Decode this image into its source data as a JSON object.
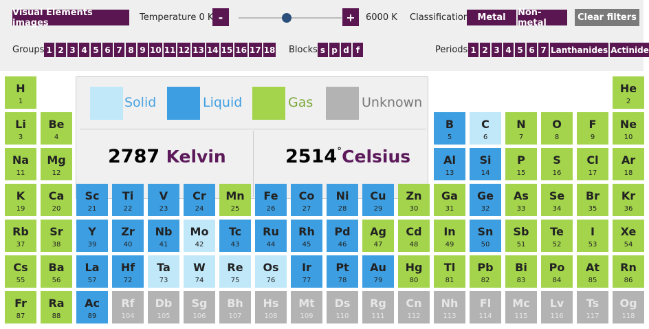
{
  "toolbar": {
    "images_button": "Visual Elements images",
    "temperature_label": "Temperature",
    "slider": {
      "min": {
        "value": 0,
        "label": "0 K"
      },
      "max": {
        "value": 6000,
        "label": "6000 K"
      }
    },
    "minus": "-",
    "plus": "+",
    "classification_label": "Classification",
    "classification": [
      "Metal",
      "Non-metal"
    ],
    "clear": "Clear filters",
    "groups_label": "Groups",
    "groups": [
      "1",
      "2",
      "3",
      "4",
      "5",
      "6",
      "7",
      "8",
      "9",
      "10",
      "11",
      "12",
      "13",
      "14",
      "15",
      "16",
      "17",
      "18"
    ],
    "blocks_label": "Blocks",
    "blocks": [
      "s",
      "p",
      "d",
      "f"
    ],
    "periods_label": "Periods",
    "periods": [
      "1",
      "2",
      "3",
      "4",
      "5",
      "6",
      "7",
      "Lanthanides",
      "Actinides"
    ]
  },
  "legend": [
    {
      "name": "Solid",
      "color": "#c0e8f9",
      "text_color": "#4aa3df"
    },
    {
      "name": "Liquid",
      "color": "#3d9fe2",
      "text_color": "#3d9fe2"
    },
    {
      "name": "Gas",
      "color": "#a3d44c",
      "text_color": "#7aa93a"
    },
    {
      "name": "Unknown",
      "color": "#b3b3b3",
      "text_color": "#777777"
    }
  ],
  "temperature": {
    "kelvin": 2787,
    "kelvin_unit": "Kelvin",
    "celsius": 2514,
    "degree": "°",
    "celsius_unit": "Celsius"
  },
  "elements": [
    {
      "symbol": "H",
      "number": 1,
      "state": 2
    },
    {
      "symbol": "He",
      "number": 2,
      "state": 2
    },
    {
      "symbol": "Li",
      "number": 3,
      "state": 2
    },
    {
      "symbol": "Be",
      "number": 4,
      "state": 2
    },
    {
      "symbol": "B",
      "number": 5,
      "state": 1
    },
    {
      "symbol": "C",
      "number": 6,
      "state": 0
    },
    {
      "symbol": "N",
      "number": 7,
      "state": 2
    },
    {
      "symbol": "O",
      "number": 8,
      "state": 2
    },
    {
      "symbol": "F",
      "number": 9,
      "state": 2
    },
    {
      "symbol": "Ne",
      "number": 10,
      "state": 2
    },
    {
      "symbol": "Na",
      "number": 11,
      "state": 2
    },
    {
      "symbol": "Mg",
      "number": 12,
      "state": 2
    },
    {
      "symbol": "Al",
      "number": 13,
      "state": 1
    },
    {
      "symbol": "Si",
      "number": 14,
      "state": 1
    },
    {
      "symbol": "P",
      "number": 15,
      "state": 2
    },
    {
      "symbol": "S",
      "number": 16,
      "state": 2
    },
    {
      "symbol": "Cl",
      "number": 17,
      "state": 2
    },
    {
      "symbol": "Ar",
      "number": 18,
      "state": 2
    },
    {
      "symbol": "K",
      "number": 19,
      "state": 2
    },
    {
      "symbol": "Ca",
      "number": 20,
      "state": 2
    },
    {
      "symbol": "Sc",
      "number": 21,
      "state": 1
    },
    {
      "symbol": "Ti",
      "number": 22,
      "state": 1
    },
    {
      "symbol": "V",
      "number": 23,
      "state": 1
    },
    {
      "symbol": "Cr",
      "number": 24,
      "state": 1
    },
    {
      "symbol": "Mn",
      "number": 25,
      "state": 2
    },
    {
      "symbol": "Fe",
      "number": 26,
      "state": 1
    },
    {
      "symbol": "Co",
      "number": 27,
      "state": 1
    },
    {
      "symbol": "Ni",
      "number": 28,
      "state": 1
    },
    {
      "symbol": "Cu",
      "number": 29,
      "state": 1
    },
    {
      "symbol": "Zn",
      "number": 30,
      "state": 2
    },
    {
      "symbol": "Ga",
      "number": 31,
      "state": 2
    },
    {
      "symbol": "Ge",
      "number": 32,
      "state": 1
    },
    {
      "symbol": "As",
      "number": 33,
      "state": 2
    },
    {
      "symbol": "Se",
      "number": 34,
      "state": 2
    },
    {
      "symbol": "Br",
      "number": 35,
      "state": 2
    },
    {
      "symbol": "Kr",
      "number": 36,
      "state": 2
    },
    {
      "symbol": "Rb",
      "number": 37,
      "state": 2
    },
    {
      "symbol": "Sr",
      "number": 38,
      "state": 2
    },
    {
      "symbol": "Y",
      "number": 39,
      "state": 1
    },
    {
      "symbol": "Zr",
      "number": 40,
      "state": 1
    },
    {
      "symbol": "Nb",
      "number": 41,
      "state": 1
    },
    {
      "symbol": "Mo",
      "number": 42,
      "state": 0
    },
    {
      "symbol": "Tc",
      "number": 43,
      "state": 1
    },
    {
      "symbol": "Ru",
      "number": 44,
      "state": 1
    },
    {
      "symbol": "Rh",
      "number": 45,
      "state": 1
    },
    {
      "symbol": "Pd",
      "number": 46,
      "state": 1
    },
    {
      "symbol": "Ag",
      "number": 47,
      "state": 2
    },
    {
      "symbol": "Cd",
      "number": 48,
      "state": 2
    },
    {
      "symbol": "In",
      "number": 49,
      "state": 2
    },
    {
      "symbol": "Sn",
      "number": 50,
      "state": 1
    },
    {
      "symbol": "Sb",
      "number": 51,
      "state": 2
    },
    {
      "symbol": "Te",
      "number": 52,
      "state": 2
    },
    {
      "symbol": "I",
      "number": 53,
      "state": 2
    },
    {
      "symbol": "Xe",
      "number": 54,
      "state": 2
    },
    {
      "symbol": "Cs",
      "number": 55,
      "state": 2
    },
    {
      "symbol": "Ba",
      "number": 56,
      "state": 2
    },
    {
      "symbol": "La",
      "number": 57,
      "state": 1
    },
    {
      "symbol": "Hf",
      "number": 72,
      "state": 1
    },
    {
      "symbol": "Ta",
      "number": 73,
      "state": 0
    },
    {
      "symbol": "W",
      "number": 74,
      "state": 0
    },
    {
      "symbol": "Re",
      "number": 75,
      "state": 0
    },
    {
      "symbol": "Os",
      "number": 76,
      "state": 0
    },
    {
      "symbol": "Ir",
      "number": 77,
      "state": 1
    },
    {
      "symbol": "Pt",
      "number": 78,
      "state": 1
    },
    {
      "symbol": "Au",
      "number": 79,
      "state": 1
    },
    {
      "symbol": "Hg",
      "number": 80,
      "state": 2
    },
    {
      "symbol": "Tl",
      "number": 81,
      "state": 2
    },
    {
      "symbol": "Pb",
      "number": 82,
      "state": 2
    },
    {
      "symbol": "Bi",
      "number": 83,
      "state": 2
    },
    {
      "symbol": "Po",
      "number": 84,
      "state": 2
    },
    {
      "symbol": "At",
      "number": 85,
      "state": 2
    },
    {
      "symbol": "Rn",
      "number": 86,
      "state": 2
    },
    {
      "symbol": "Fr",
      "number": 87,
      "state": 2
    },
    {
      "symbol": "Ra",
      "number": 88,
      "state": 2
    },
    {
      "symbol": "Ac",
      "number": 89,
      "state": 1
    },
    {
      "symbol": "Rf",
      "number": 104,
      "state": 3
    },
    {
      "symbol": "Db",
      "number": 105,
      "state": 3
    },
    {
      "symbol": "Sg",
      "number": 106,
      "state": 3
    },
    {
      "symbol": "Bh",
      "number": 107,
      "state": 3
    },
    {
      "symbol": "Hs",
      "number": 108,
      "state": 3
    },
    {
      "symbol": "Mt",
      "number": 109,
      "state": 3
    },
    {
      "symbol": "Ds",
      "number": 110,
      "state": 3
    },
    {
      "symbol": "Rg",
      "number": 111,
      "state": 3
    },
    {
      "symbol": "Cn",
      "number": 112,
      "state": 3
    },
    {
      "symbol": "Nh",
      "number": 113,
      "state": 3
    },
    {
      "symbol": "Fl",
      "number": 114,
      "state": 3
    },
    {
      "symbol": "Mc",
      "number": 115,
      "state": 3
    },
    {
      "symbol": "Lv",
      "number": 116,
      "state": 3
    },
    {
      "symbol": "Ts",
      "number": 117,
      "state": 3
    },
    {
      "symbol": "Og",
      "number": 118,
      "state": 3
    }
  ]
}
